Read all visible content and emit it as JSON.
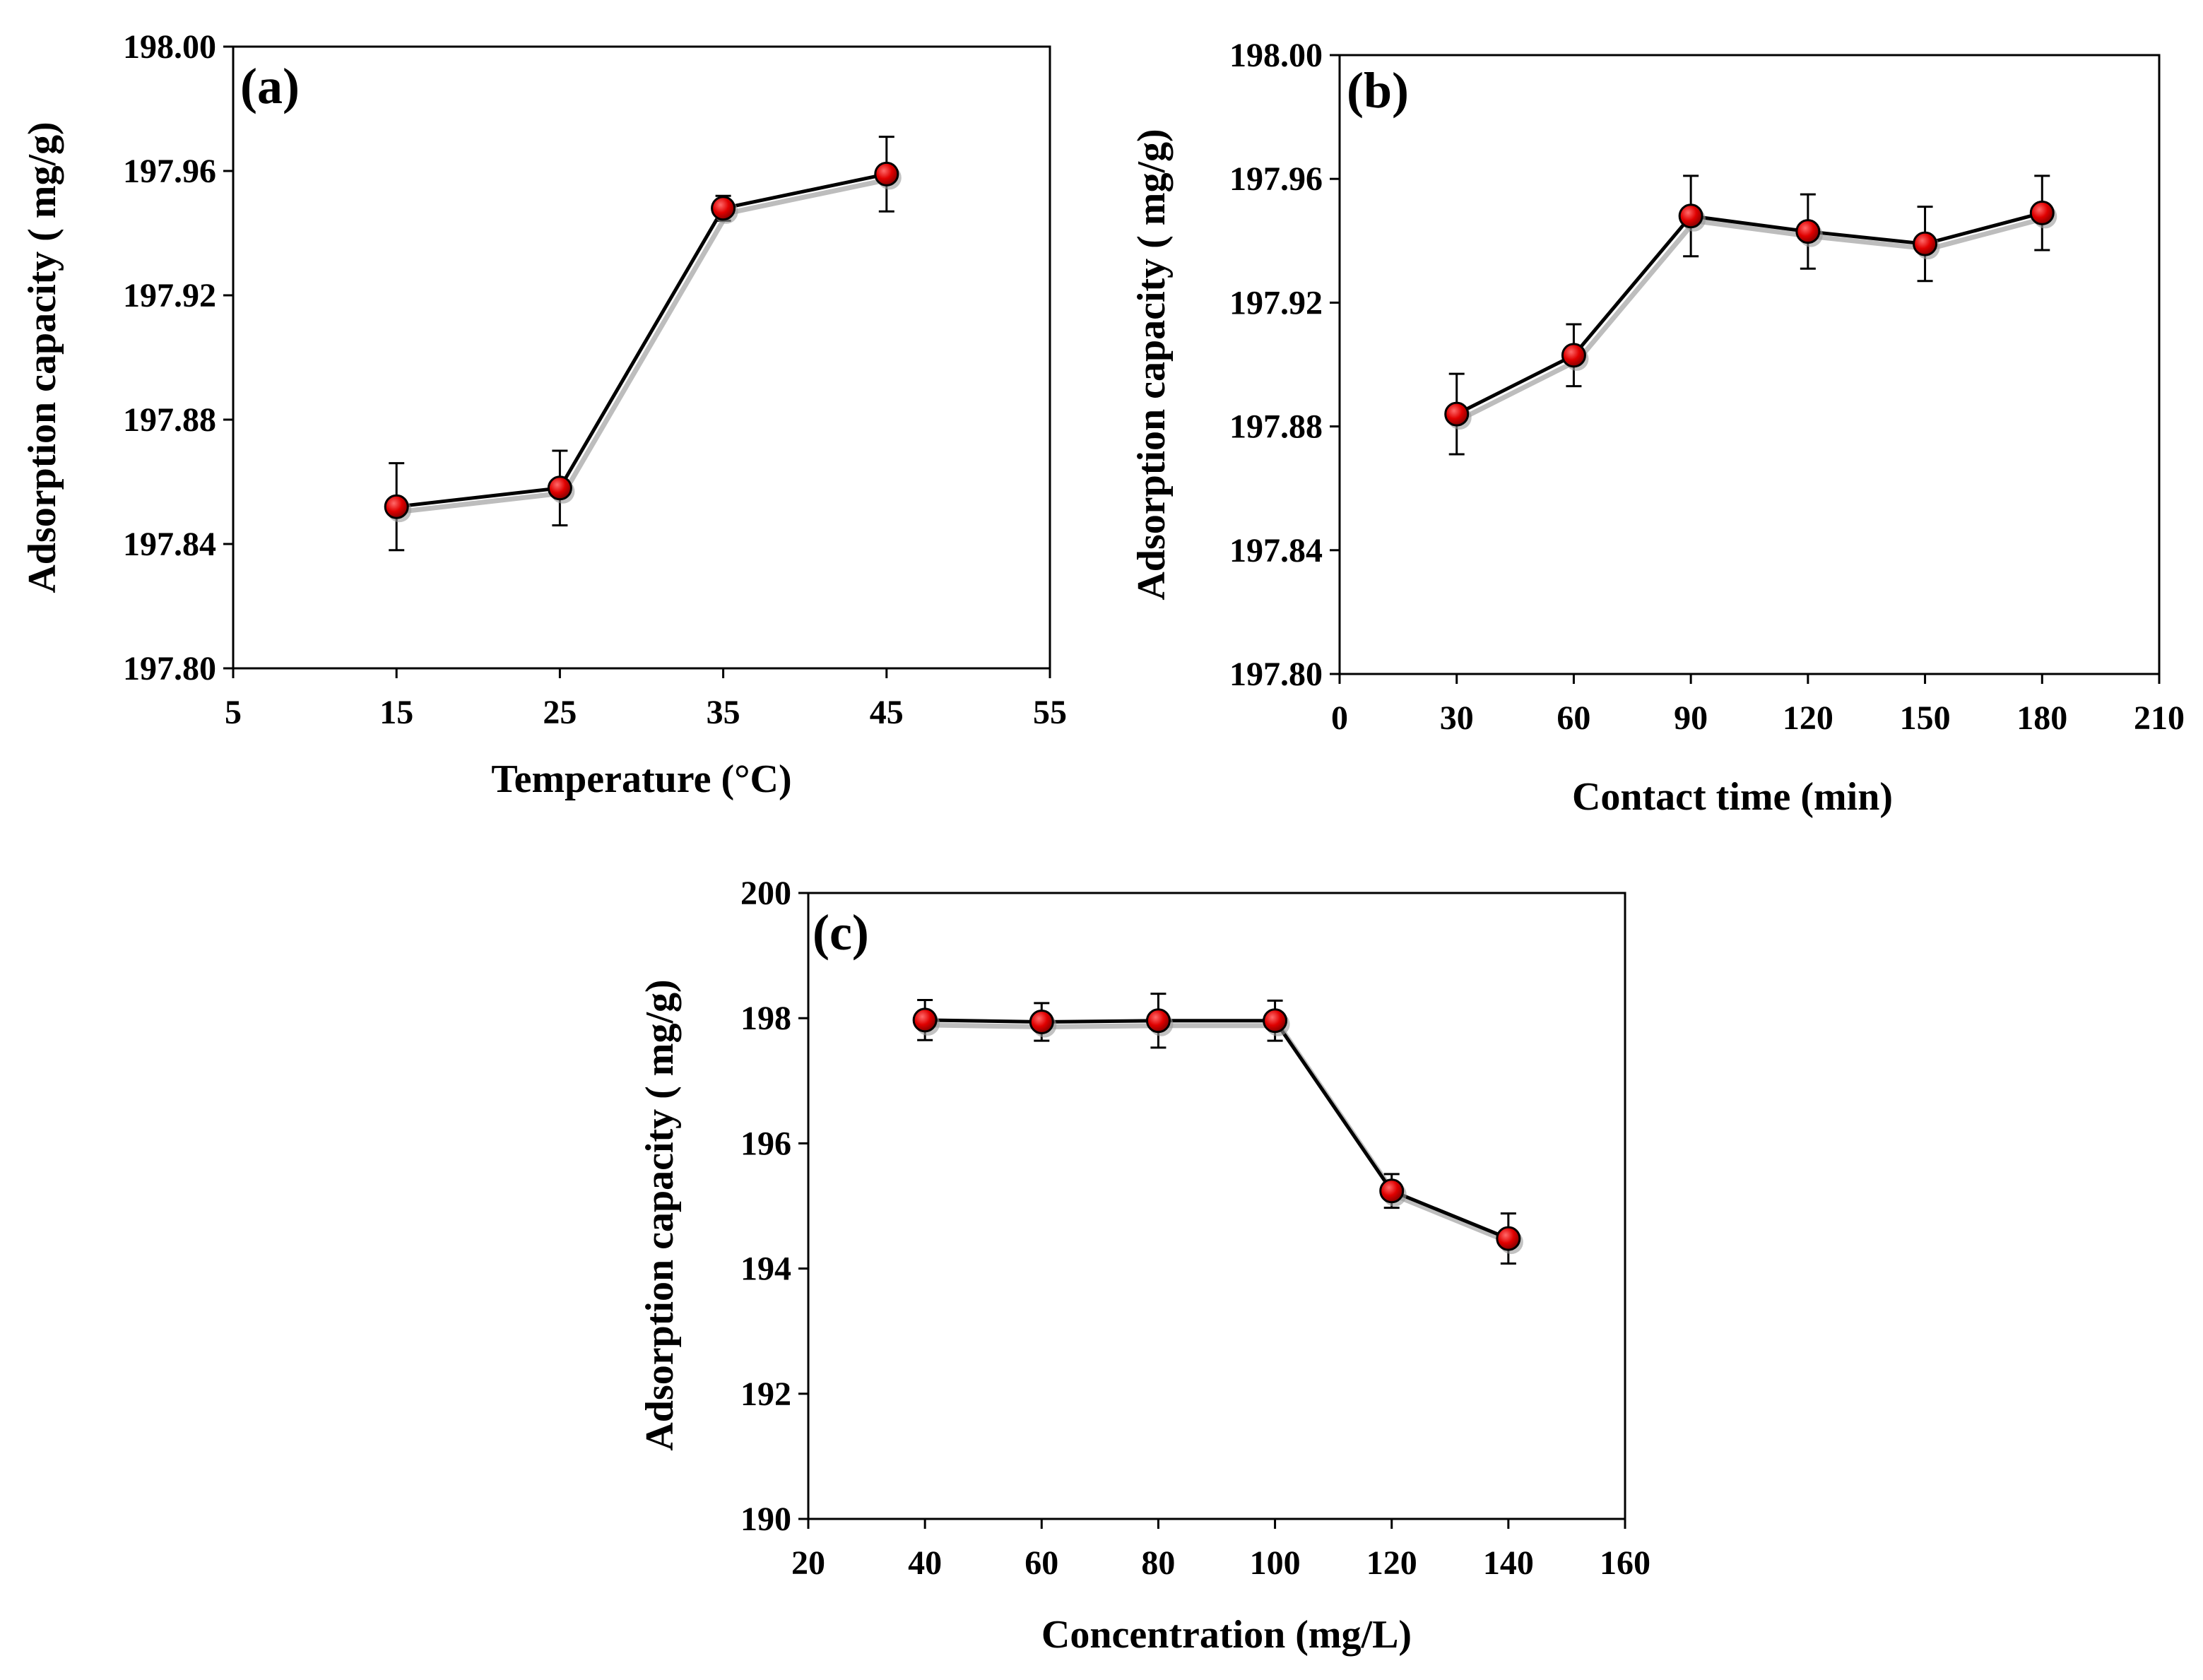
{
  "chart_data": [
    {
      "type": "line",
      "panel_label": "(a)",
      "xlabel": "Temperature (°C)",
      "ylabel": "Adsorption capacity ( mg/g)",
      "xlim": [
        5,
        55
      ],
      "ylim": [
        197.8,
        198.0
      ],
      "xticks": [
        5,
        15,
        25,
        35,
        45,
        55
      ],
      "xtick_labels": [
        "5",
        "15",
        "25",
        "35",
        "45",
        "55"
      ],
      "yticks": [
        197.8,
        197.84,
        197.88,
        197.92,
        197.96,
        198.0
      ],
      "ytick_labels": [
        "197.80",
        "197.84",
        "197.88",
        "197.92",
        "197.96",
        "198.00"
      ],
      "x": [
        15,
        25,
        35,
        45
      ],
      "y": [
        197.852,
        197.858,
        197.948,
        197.959
      ],
      "yerr": [
        0.014,
        0.012,
        0.004,
        0.012
      ],
      "marker_color": "#e00000"
    },
    {
      "type": "line",
      "panel_label": "(b)",
      "xlabel": "Contact time (min)",
      "ylabel": "Adsorption capacity ( mg/g)",
      "xlim": [
        0,
        210
      ],
      "ylim": [
        197.8,
        198.0
      ],
      "xticks": [
        0,
        30,
        60,
        90,
        120,
        150,
        180,
        210
      ],
      "xtick_labels": [
        "0",
        "30",
        "60",
        "90",
        "120",
        "150",
        "180",
        "210"
      ],
      "yticks": [
        197.8,
        197.84,
        197.88,
        197.92,
        197.96,
        198.0
      ],
      "ytick_labels": [
        "197.80",
        "197.84",
        "197.88",
        "197.92",
        "197.96",
        "198.00"
      ],
      "x": [
        30,
        60,
        90,
        120,
        150,
        180
      ],
      "y": [
        197.884,
        197.903,
        197.948,
        197.943,
        197.939,
        197.949
      ],
      "yerr": [
        0.013,
        0.01,
        0.013,
        0.012,
        0.012,
        0.012
      ],
      "marker_color": "#e00000"
    },
    {
      "type": "line",
      "panel_label": "(c)",
      "xlabel": "Concentration (mg/L)",
      "ylabel": "Adsorption capacity ( mg/g)",
      "xlim": [
        20,
        160
      ],
      "ylim": [
        190,
        200
      ],
      "xticks": [
        20,
        40,
        60,
        80,
        100,
        120,
        140,
        160
      ],
      "xtick_labels": [
        "20",
        "40",
        "60",
        "80",
        "100",
        "120",
        "140",
        "160"
      ],
      "yticks": [
        190,
        192,
        194,
        196,
        198,
        200
      ],
      "ytick_labels": [
        "190",
        "192",
        "194",
        "196",
        "198",
        "200"
      ],
      "x": [
        40,
        60,
        80,
        100,
        120,
        140
      ],
      "y": [
        197.97,
        197.94,
        197.96,
        197.96,
        195.24,
        194.48
      ],
      "yerr": [
        0.32,
        0.3,
        0.43,
        0.32,
        0.27,
        0.4
      ],
      "marker_color": "#e00000"
    }
  ]
}
